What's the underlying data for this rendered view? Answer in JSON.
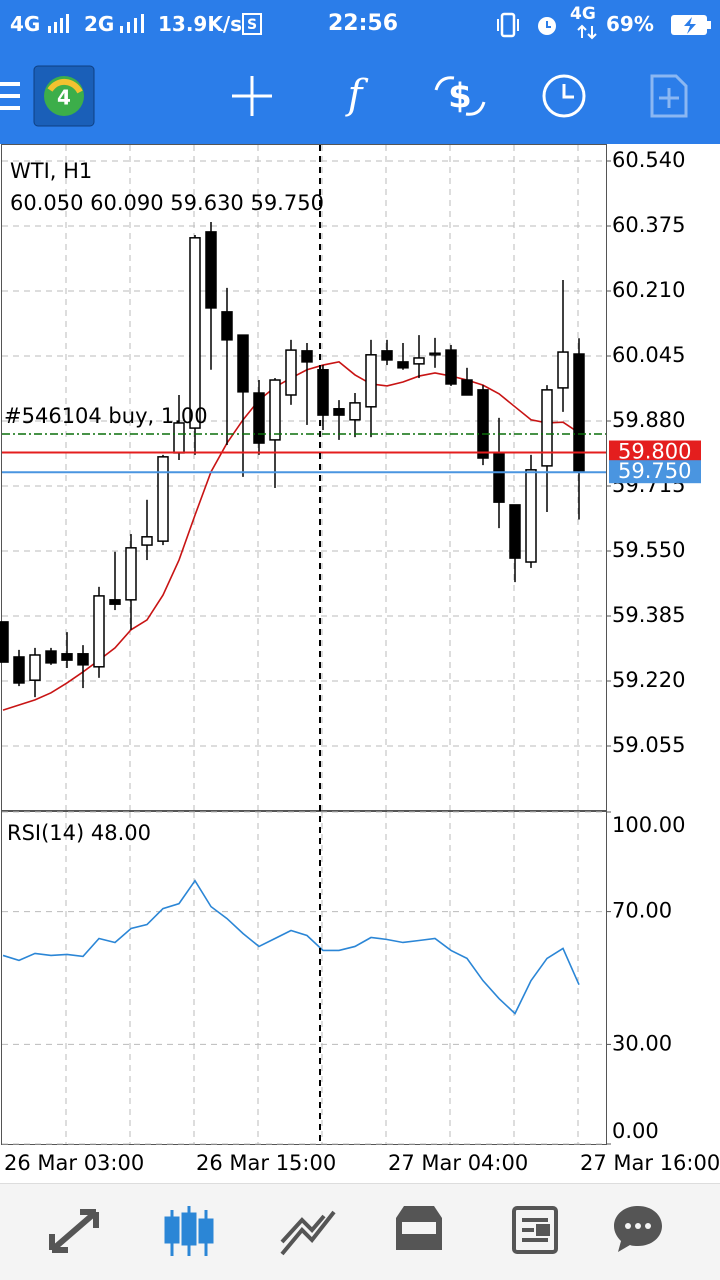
{
  "status_bar": {
    "network_1": "4G",
    "network_2": "2G",
    "speed": "13.9K/s",
    "time": "22:56",
    "network_3": "4G",
    "battery": "69%"
  },
  "chart_data": [
    {
      "type": "candlestick",
      "title": "WTI, H1",
      "quote": "60.050 60.090 59.630 59.750",
      "categories": [
        "26 Mar 03:00",
        null,
        null,
        null,
        null,
        null,
        null,
        null,
        null,
        null,
        null,
        null,
        "26 Mar 15:00",
        null,
        null,
        null,
        null,
        null,
        null,
        null,
        null,
        null,
        null,
        null,
        "27 Mar 04:00",
        null,
        null,
        null,
        null,
        null,
        null,
        null,
        null,
        null,
        null,
        null,
        "27 Mar 16:00"
      ],
      "open": [
        59.37,
        59.281,
        59.222,
        59.296,
        59.289,
        59.289,
        59.256,
        59.426,
        59.426,
        59.565,
        59.575,
        59.799,
        59.862,
        60.36,
        60.157,
        60.098,
        59.951,
        59.832,
        59.946,
        60.058,
        60.01,
        59.911,
        59.883,
        59.916,
        60.058,
        60.03,
        60.025,
        60.048,
        60.06,
        59.984,
        59.959,
        59.799,
        59.667,
        59.522,
        59.766,
        59.964,
        60.05
      ],
      "high": [
        59.37,
        59.299,
        59.304,
        59.304,
        59.344,
        59.311,
        59.459,
        59.548,
        59.593,
        59.68,
        59.794,
        59.946,
        60.352,
        60.385,
        60.218,
        60.098,
        59.984,
        59.989,
        60.086,
        60.078,
        60.022,
        59.933,
        59.951,
        60.086,
        60.086,
        60.078,
        60.098,
        60.091,
        60.073,
        60.015,
        59.971,
        59.888,
        59.667,
        59.794,
        59.971,
        60.238,
        60.09
      ],
      "low": [
        59.268,
        59.207,
        59.179,
        59.261,
        59.253,
        59.202,
        59.228,
        59.4,
        59.35,
        59.527,
        59.565,
        59.781,
        59.794,
        60.01,
        59.819,
        59.738,
        59.794,
        59.71,
        59.921,
        59.87,
        59.857,
        59.832,
        59.839,
        59.839,
        60.022,
        60.01,
        59.989,
        60.015,
        59.969,
        59.946,
        59.768,
        59.608,
        59.471,
        59.507,
        59.649,
        59.903,
        59.63
      ],
      "close": [
        59.268,
        59.215,
        59.286,
        59.266,
        59.273,
        59.261,
        59.436,
        59.415,
        59.558,
        59.586,
        59.789,
        59.875,
        60.345,
        60.167,
        60.086,
        59.954,
        59.824,
        59.984,
        60.06,
        60.03,
        59.895,
        59.895,
        59.926,
        60.048,
        60.035,
        60.015,
        60.04,
        60.052,
        59.974,
        59.946,
        59.786,
        59.674,
        59.532,
        59.756,
        59.959,
        60.055,
        59.75
      ],
      "up_color": "#ffffff",
      "down_color": "#000000",
      "moving_average": {
        "color": "#c81414",
        "values": [
          59.146,
          59.159,
          59.172,
          59.19,
          59.215,
          59.243,
          59.273,
          59.304,
          59.35,
          59.375,
          59.438,
          59.527,
          59.641,
          59.751,
          59.824,
          59.883,
          59.933,
          59.966,
          59.989,
          60.01,
          60.022,
          60.03,
          59.997,
          59.974,
          59.969,
          59.979,
          59.994,
          60.002,
          59.994,
          59.984,
          59.971,
          59.949,
          59.916,
          59.883,
          59.875,
          59.877,
          59.85
        ]
      },
      "order_line": {
        "label": "#546104 buy, 1.00",
        "value": 59.847,
        "color": "#0a6e0a"
      },
      "price_lines": [
        {
          "label": "59.800",
          "value": 59.8,
          "color": "#e41e1e"
        },
        {
          "label": "59.750",
          "value": 59.75,
          "color": "#4a95e0"
        }
      ],
      "ylim": [
        58.8925,
        60.5806
      ],
      "yticks": [
        {
          "value": 60.54,
          "label": "60.540"
        },
        {
          "value": 60.375,
          "label": "60.375"
        },
        {
          "value": 60.21,
          "label": "60.210"
        },
        {
          "value": 60.045,
          "label": "60.045"
        },
        {
          "value": 59.88,
          "label": "59.880"
        },
        {
          "value": 59.715,
          "label": "59.715"
        },
        {
          "value": 59.55,
          "label": "59.550"
        },
        {
          "value": 59.385,
          "label": "59.385"
        },
        {
          "value": 59.22,
          "label": "59.220"
        },
        {
          "value": 59.055,
          "label": "59.055"
        }
      ],
      "grid": true
    },
    {
      "type": "line",
      "title": "RSI(14) 48.00",
      "color": "#2b86d6",
      "values": [
        56.8,
        55.3,
        57.4,
        56.8,
        57.1,
        56.5,
        61.9,
        60.7,
        64.9,
        66.1,
        70.9,
        72.4,
        79.3,
        71.5,
        67.9,
        63.4,
        59.5,
        61.9,
        64.3,
        62.8,
        58.3,
        58.3,
        59.5,
        62.2,
        61.6,
        60.7,
        61.3,
        61.9,
        58.3,
        55.9,
        49.2,
        43.8,
        39.3,
        49.2,
        55.9,
        58.9,
        48.0
      ],
      "ylim": [
        0,
        100
      ],
      "yticks": [
        {
          "value": 0,
          "label": "0.00"
        },
        {
          "value": 30,
          "label": "30.00"
        },
        {
          "value": 70,
          "label": "70.00"
        },
        {
          "value": 100,
          "label": "100.00"
        }
      ],
      "grid": true
    }
  ]
}
